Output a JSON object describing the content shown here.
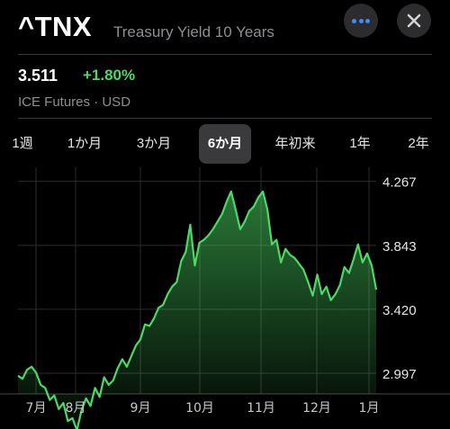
{
  "header": {
    "symbol": "^TNX",
    "name": "Treasury Yield 10 Years"
  },
  "quote": {
    "price": "3.511",
    "change": "+1.80%",
    "source": "ICE Futures · USD"
  },
  "ranges": [
    {
      "label": "1週",
      "active": false
    },
    {
      "label": "1か月",
      "active": false
    },
    {
      "label": "3か月",
      "active": false
    },
    {
      "label": "6か月",
      "active": true
    },
    {
      "label": "年初来",
      "active": false
    },
    {
      "label": "1年",
      "active": false
    },
    {
      "label": "2年",
      "active": false
    }
  ],
  "colors": {
    "line": "#4cd964",
    "positive": "#4cd964",
    "accent": "#3d8bfd",
    "grid": "#2c2c2e"
  },
  "icons": {
    "more": "ellipsis-icon",
    "close": "close-icon"
  },
  "chart_data": {
    "type": "area",
    "x_labels": [
      "7月",
      "8月",
      "9月",
      "10月",
      "11月",
      "12月",
      "1月"
    ],
    "y_ticks": [
      "4.267",
      "3.843",
      "3.420",
      "2.997"
    ],
    "ylim": [
      2.86,
      4.36
    ],
    "grid": true,
    "series": [
      {
        "x": [
          "2022-07-01",
          "2022-07-04",
          "2022-07-06",
          "2022-07-08",
          "2022-07-11",
          "2022-07-13",
          "2022-07-15",
          "2022-07-18",
          "2022-07-20",
          "2022-07-22",
          "2022-07-25",
          "2022-07-27",
          "2022-07-29",
          "2022-08-01",
          "2022-08-03",
          "2022-08-05",
          "2022-08-08",
          "2022-08-10",
          "2022-08-12",
          "2022-08-15",
          "2022-08-17",
          "2022-08-19",
          "2022-08-22",
          "2022-08-24",
          "2022-08-26",
          "2022-08-29",
          "2022-08-31",
          "2022-09-02",
          "2022-09-06",
          "2022-09-08",
          "2022-09-12",
          "2022-09-14",
          "2022-09-16",
          "2022-09-19",
          "2022-09-21",
          "2022-09-23",
          "2022-09-26",
          "2022-09-28",
          "2022-09-30",
          "2022-10-03",
          "2022-10-05",
          "2022-10-07",
          "2022-10-10",
          "2022-10-12",
          "2022-10-14",
          "2022-10-17",
          "2022-10-19",
          "2022-10-21",
          "2022-10-24",
          "2022-10-26",
          "2022-10-28",
          "2022-10-31",
          "2022-11-02",
          "2022-11-04",
          "2022-11-07",
          "2022-11-09",
          "2022-11-11",
          "2022-11-14",
          "2022-11-16",
          "2022-11-18",
          "2022-11-21",
          "2022-11-23",
          "2022-11-25",
          "2022-11-28",
          "2022-11-30",
          "2022-12-02",
          "2022-12-05",
          "2022-12-07",
          "2022-12-09",
          "2022-12-12",
          "2022-12-14",
          "2022-12-16",
          "2022-12-19",
          "2022-12-21",
          "2022-12-23",
          "2022-12-27",
          "2022-12-29",
          "2023-01-03",
          "2023-01-05",
          "2023-01-06"
        ],
        "values": [
          2.98,
          2.96,
          3.02,
          3.04,
          3.0,
          2.92,
          2.9,
          2.82,
          2.85,
          2.76,
          2.8,
          2.68,
          2.7,
          2.62,
          2.75,
          2.83,
          2.78,
          2.9,
          2.84,
          2.97,
          2.92,
          2.95,
          3.03,
          3.09,
          3.04,
          3.11,
          3.18,
          3.22,
          3.32,
          3.31,
          3.36,
          3.43,
          3.45,
          3.52,
          3.57,
          3.6,
          3.74,
          3.8,
          3.98,
          3.71,
          3.86,
          3.88,
          3.91,
          3.95,
          4.0,
          4.05,
          4.13,
          4.2,
          4.08,
          3.95,
          4.0,
          4.07,
          4.1,
          4.16,
          4.2,
          4.08,
          3.85,
          3.88,
          3.73,
          3.82,
          3.78,
          3.76,
          3.72,
          3.68,
          3.6,
          3.51,
          3.65,
          3.52,
          3.57,
          3.48,
          3.52,
          3.58,
          3.7,
          3.66,
          3.75,
          3.85,
          3.73,
          3.79,
          3.71,
          3.55
        ]
      }
    ]
  }
}
